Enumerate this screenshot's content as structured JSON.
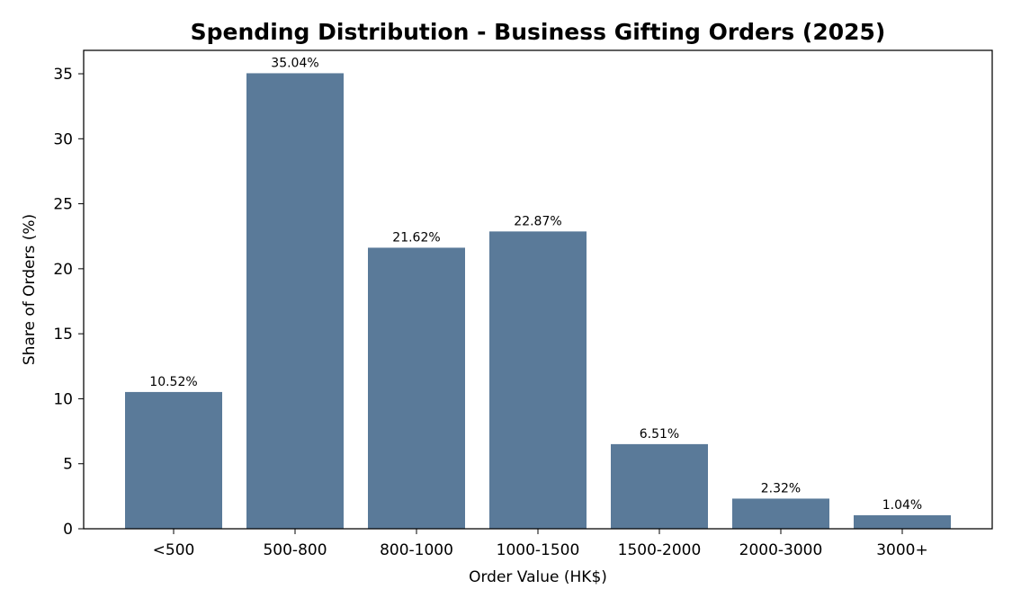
{
  "chart_data": {
    "type": "bar",
    "title": "Spending Distribution - Business Gifting Orders (2025)",
    "xlabel": "Order Value (HK$)",
    "ylabel": "Share of Orders (%)",
    "categories": [
      "<500",
      "500-800",
      "800-1000",
      "1000-1500",
      "1500-2000",
      "2000-3000",
      "3000+"
    ],
    "values": [
      10.52,
      35.04,
      21.62,
      22.87,
      6.51,
      2.32,
      1.04
    ],
    "data_labels": [
      "10.52%",
      "35.04%",
      "21.62%",
      "22.87%",
      "6.51%",
      "2.32%",
      "1.04%"
    ],
    "ylim": [
      0,
      36.8
    ],
    "yticks": [
      0,
      5,
      10,
      15,
      20,
      25,
      30,
      35
    ],
    "grid": false,
    "bar_color": "#5a7a99"
  }
}
